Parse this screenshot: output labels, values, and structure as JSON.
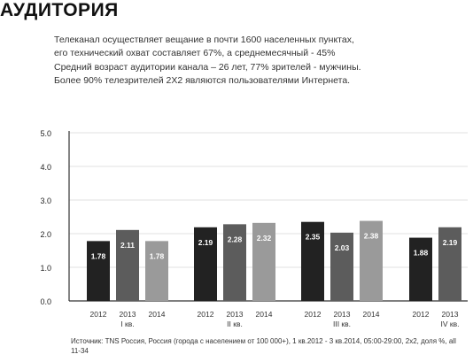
{
  "title": "АУДИТОРИЯ",
  "intro_lines": [
    "Телеканал осуществляет вещание в почти 1600 населенных пунктах,",
    "его технический охват составляет 67%, а среднемесячный - 45%",
    "Средний возраст аудитории канала – 26 лет, 77% зрителей - мужчины.",
    "Более 90% телезрителей 2Х2 являются пользователями Интернета."
  ],
  "source": "Источник: TNS Россия, Россия (города с населением от 100 000+), 1 кв.2012 - 3 кв.2014, 05:00-29:00, 2х2, доля %, all 11-34",
  "chart_data": {
    "type": "bar",
    "ylim": [
      0,
      5
    ],
    "yticks": [
      "0.0",
      "1.0",
      "2.0",
      "3.0",
      "4.0",
      "5.0"
    ],
    "grid": true,
    "colors": {
      "2012": "#222222",
      "2013": "#5c5c5c",
      "2014": "#9a9a9a",
      "axis": "#333333",
      "grid": "#e0e0e0"
    },
    "groups": [
      {
        "label": "I кв.",
        "bars": [
          {
            "year": "2012",
            "value": 1.78,
            "label": "1.78"
          },
          {
            "year": "2013",
            "value": 2.11,
            "label": "2.11"
          },
          {
            "year": "2014",
            "value": 1.78,
            "label": "1.78"
          }
        ]
      },
      {
        "label": "II кв.",
        "bars": [
          {
            "year": "2012",
            "value": 2.19,
            "label": "2.19"
          },
          {
            "year": "2013",
            "value": 2.28,
            "label": "2.28"
          },
          {
            "year": "2014",
            "value": 2.32,
            "label": "2.32"
          }
        ]
      },
      {
        "label": "III кв.",
        "bars": [
          {
            "year": "2012",
            "value": 2.35,
            "label": "2.35"
          },
          {
            "year": "2013",
            "value": 2.03,
            "label": "2.03"
          },
          {
            "year": "2014",
            "value": 2.38,
            "label": "2.38"
          }
        ]
      },
      {
        "label": "IV кв.",
        "bars": [
          {
            "year": "2012",
            "value": 1.88,
            "label": "1.88"
          },
          {
            "year": "2013",
            "value": 2.19,
            "label": "2.19"
          }
        ]
      }
    ]
  }
}
